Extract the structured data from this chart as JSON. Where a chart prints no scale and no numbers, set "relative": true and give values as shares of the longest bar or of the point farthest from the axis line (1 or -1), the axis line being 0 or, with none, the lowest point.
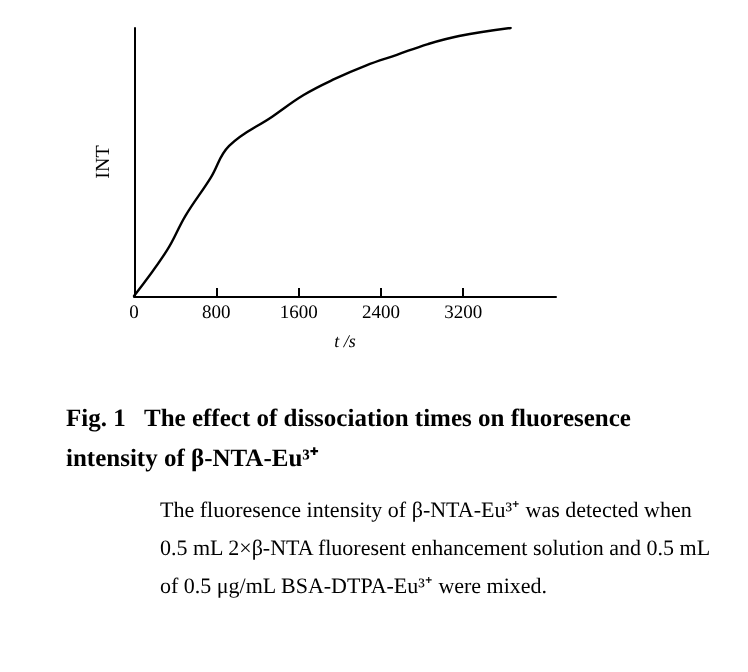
{
  "chart_data": {
    "type": "line",
    "relative": true,
    "title": "Fig. 1   The effect of dissociation times on fluoresence intensity of β-NTA-Eu³⁺",
    "annotations": [
      "The fluoresence intensity of β-NTA-Eu³⁺ was detected when 0.5 mL 2×β-NTA fluoresent enhancement solution and 0.5 mL of 0.5 μg/mL BSA-DTPA-Eu³⁺ were mixed."
    ],
    "xlabel": "t /s",
    "ylabel": "INT",
    "x": [
      0,
      320,
      501,
      743,
      924,
      1346,
      1648,
      1950,
      2252,
      2554,
      2856,
      3158,
      3659
    ],
    "values": [
      0,
      0.17,
      0.3,
      0.44,
      0.56,
      0.67,
      0.75,
      0.81,
      0.86,
      0.9,
      0.94,
      0.97,
      1
    ],
    "color": "#000000",
    "xlim": [
      0,
      4100
    ],
    "xticks": [
      0,
      800,
      1600,
      2400,
      3200
    ],
    "grid": false,
    "marker": "none",
    "line_style": "solid"
  }
}
